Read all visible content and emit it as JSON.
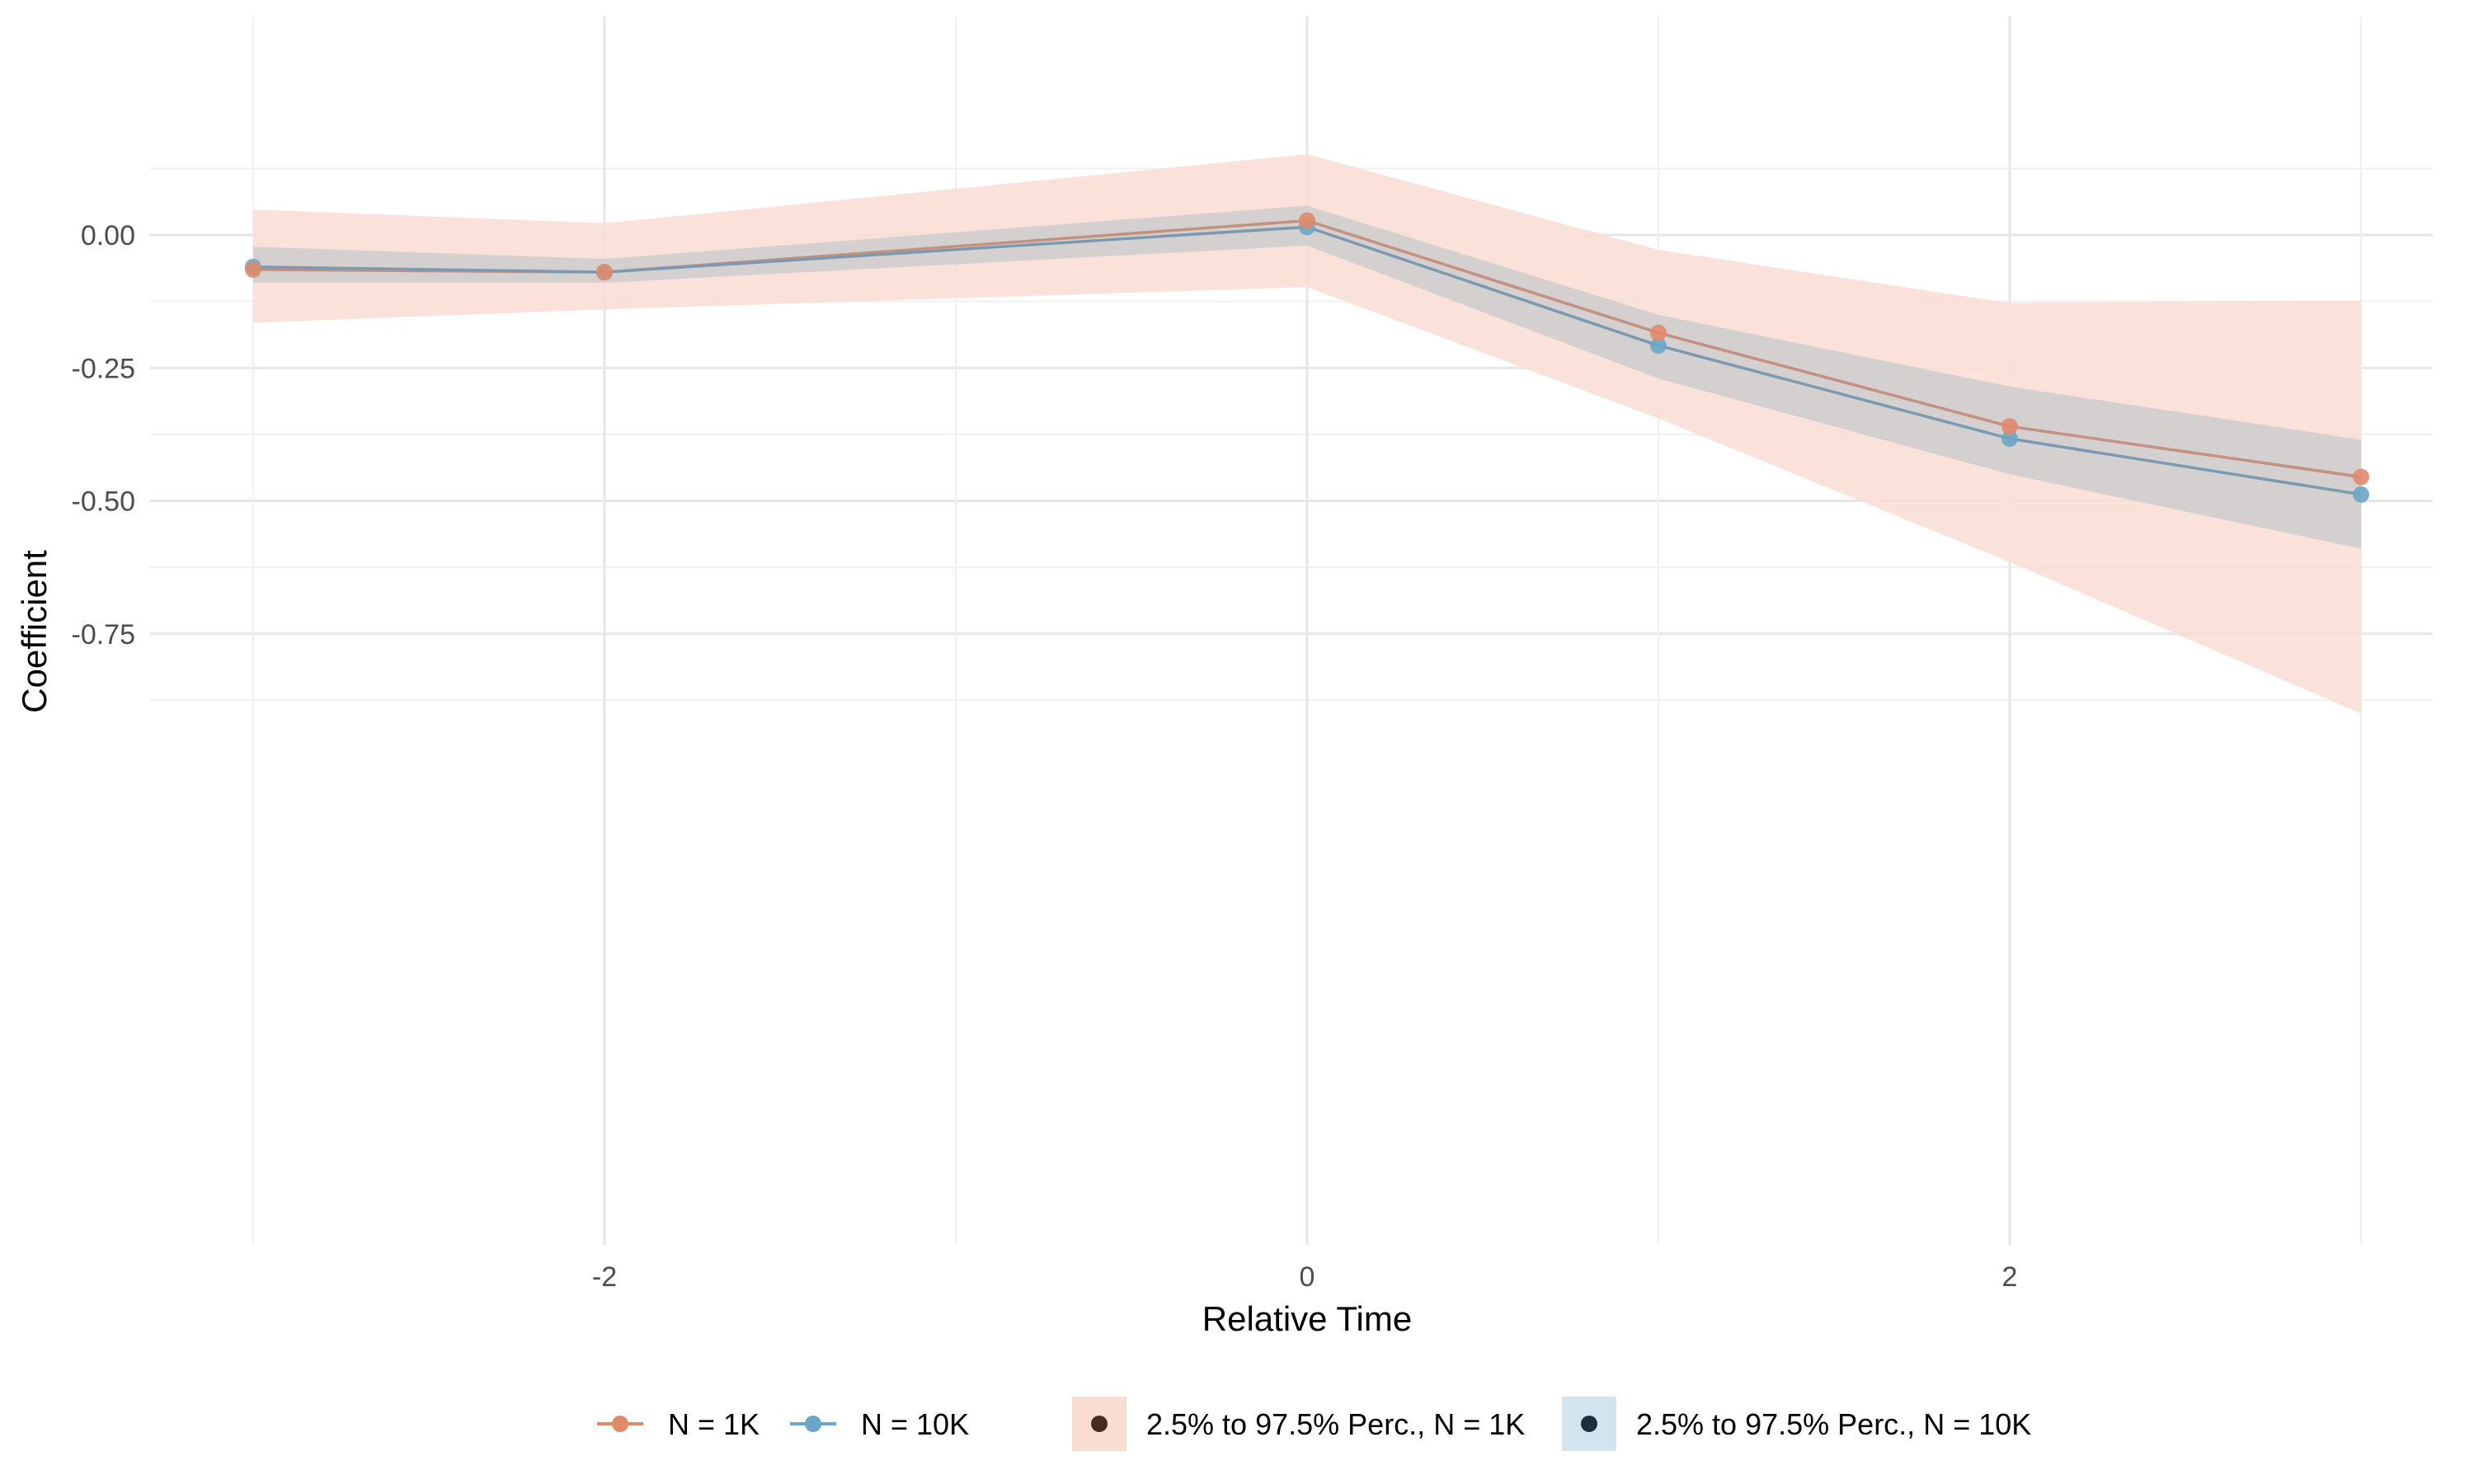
{
  "chart_data": {
    "type": "line",
    "title": "",
    "xlabel": "Relative Time",
    "ylabel": "Coefficient",
    "x": [
      -3,
      -2,
      0,
      1,
      2,
      3
    ],
    "xlim": [
      -3.3,
      3.2
    ],
    "ylim": [
      -0.95,
      0.2
    ],
    "x_ticks": [
      -2,
      0,
      2
    ],
    "x_tick_labels": [
      "-2",
      "0",
      "2"
    ],
    "y_ticks": [
      0.0,
      -0.25,
      -0.5,
      -0.75
    ],
    "y_tick_labels": [
      "0.00",
      "-0.25",
      "-0.50",
      "-0.75"
    ],
    "grid": true,
    "legend_position": "bottom",
    "series": [
      {
        "name": "N = 1K",
        "color": "#e08a6a",
        "line_color": "#c49080",
        "values": [
          -0.065,
          -0.07,
          0.027,
          -0.184,
          -0.36,
          -0.455
        ],
        "ribbon_label": "2.5% to 97.5% Perc., N = 1K",
        "ribbon_color": "#f9dcd2",
        "lower": [
          -0.165,
          -0.14,
          -0.098,
          -0.345,
          -0.615,
          -0.9
        ],
        "upper": [
          0.048,
          0.022,
          0.152,
          -0.028,
          -0.128,
          -0.123
        ]
      },
      {
        "name": "N = 10K",
        "color": "#6aa6c8",
        "line_color": "#7b9ab2",
        "values": [
          -0.06,
          -0.07,
          0.015,
          -0.208,
          -0.383,
          -0.488
        ],
        "ribbon_label": "2.5% to 97.5% Perc., N = 10K",
        "ribbon_color": "#cccccc",
        "legend_ribbon_color": "#d4e4ef",
        "lower": [
          -0.09,
          -0.09,
          -0.02,
          -0.27,
          -0.45,
          -0.59
        ],
        "upper": [
          -0.022,
          -0.045,
          0.055,
          -0.15,
          -0.285,
          -0.385
        ]
      }
    ],
    "legend_dot_colors": [
      "#4a2a20",
      "#1f2d3a"
    ]
  }
}
